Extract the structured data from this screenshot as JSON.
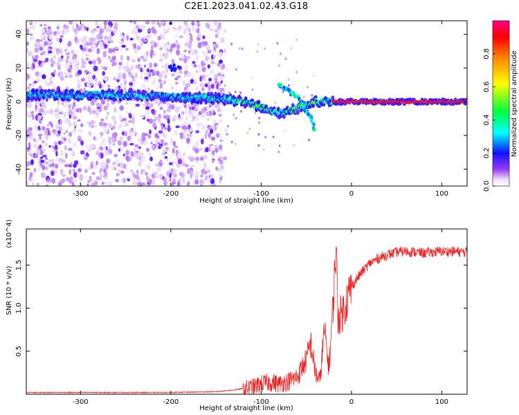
{
  "title": "C2E1.2023.041.02.43.G18",
  "chart_data": [
    {
      "type": "heatmap",
      "xlabel": "Height of straight line (km)",
      "ylabel": "Frequency (Hz)",
      "xlim": [
        -360,
        128
      ],
      "ylim": [
        -50,
        48
      ],
      "xticks": [
        -300,
        -200,
        -100,
        0,
        100
      ],
      "yticks": [
        -40,
        -20,
        0,
        20,
        40
      ],
      "grid": false,
      "colorbar": {
        "label": "Normalized spectral amplitude",
        "range": [
          0.0,
          1.0
        ],
        "ticks": [
          0.0,
          0.2,
          0.4,
          0.6,
          0.8
        ],
        "colormap": [
          "#ffffff",
          "#7f00ff",
          "#0000ff",
          "#00ffff",
          "#00ff00",
          "#ffff00",
          "#ff8000",
          "#ff0000",
          "#ff00ff"
        ]
      },
      "features": {
        "noise_region_x": [
          -360,
          -140
        ],
        "carrier_track": [
          [
            -360,
            4
          ],
          [
            -300,
            4
          ],
          [
            -240,
            4
          ],
          [
            -200,
            3
          ],
          [
            -150,
            2
          ],
          [
            -120,
            0
          ],
          [
            -100,
            -3
          ],
          [
            -80,
            -7
          ],
          [
            -60,
            -4
          ],
          [
            -40,
            0
          ],
          [
            0,
            0
          ],
          [
            128,
            0
          ]
        ],
        "upper_blob": [
          [
            -195,
            20
          ]
        ],
        "branch_curve": [
          [
            -80,
            10
          ],
          [
            -60,
            3
          ],
          [
            -45,
            -10
          ],
          [
            -40,
            -18
          ]
        ]
      }
    },
    {
      "type": "line",
      "xlabel": "Height of straight line (km)",
      "ylabel": "SNR (10 * v/v)",
      "yscale_label": "(x10^4)",
      "xlim": [
        -360,
        128
      ],
      "ylim": [
        0,
        1.92
      ],
      "xticks": [
        -300,
        -200,
        -100,
        0,
        100
      ],
      "yticks": [
        0.5,
        1.0,
        1.5
      ],
      "ytick_labels": [
        "0.5",
        "1.0",
        "1.5"
      ],
      "series": [
        {
          "color": "#ee2222",
          "x": [
            -360,
            -300,
            -250,
            -200,
            -150,
            -130,
            -110,
            -100,
            -90,
            -80,
            -70,
            -60,
            -50,
            -45,
            -40,
            -35,
            -30,
            -25,
            -20,
            -17,
            -15,
            -10,
            -5,
            0,
            10,
            20,
            30,
            40,
            50,
            60,
            70,
            80,
            90,
            100,
            110,
            128
          ],
          "y": [
            0.02,
            0.02,
            0.02,
            0.02,
            0.03,
            0.05,
            0.08,
            0.12,
            0.14,
            0.12,
            0.15,
            0.2,
            0.4,
            0.6,
            0.25,
            0.15,
            0.75,
            0.3,
            1.1,
            1.75,
            0.9,
            0.95,
            1.1,
            1.25,
            1.4,
            1.52,
            1.58,
            1.62,
            1.65,
            1.66,
            1.65,
            1.64,
            1.65,
            1.66,
            1.66,
            1.65
          ]
        }
      ]
    }
  ]
}
